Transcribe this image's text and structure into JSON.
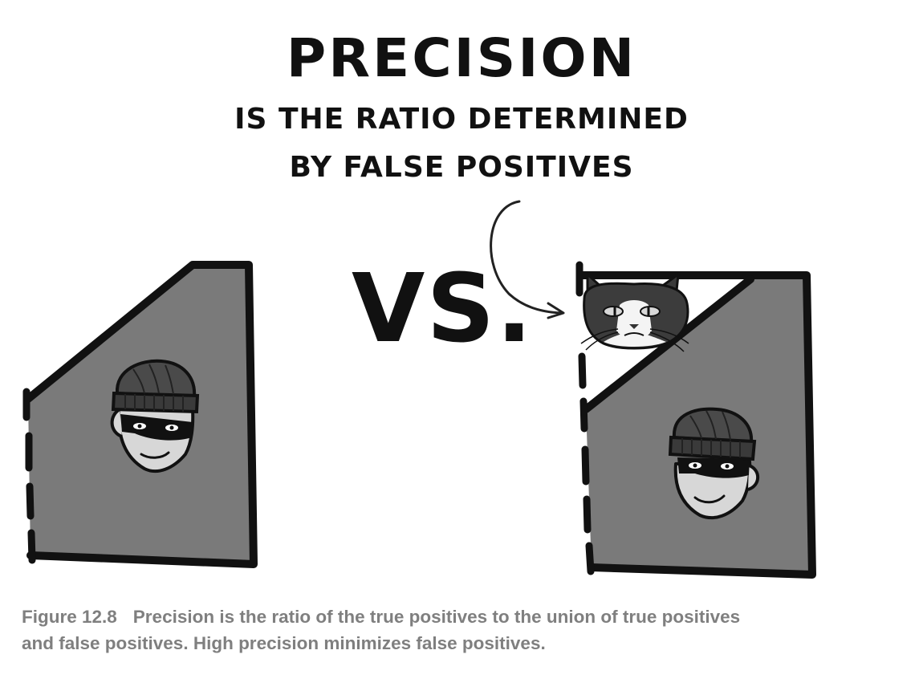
{
  "illustration": {
    "title": "PRECISION",
    "subtitle_line1": "IS THE RATIO DETERMINED",
    "subtitle_line2": "BY FALSE POSITIVES",
    "versus": "VS."
  },
  "caption": {
    "label": "Figure 12.8",
    "text_line1": "Precision is the ratio of the true positives to the union of true positives",
    "text_line2": "and false positives. High precision minimizes false positives."
  },
  "colors": {
    "ink": "#111111",
    "region_fill": "#7a7a7a",
    "caption_gray": "#7f7f7f"
  },
  "icons": [
    "burglar-icon",
    "cat-icon",
    "curved-arrow-icon"
  ]
}
